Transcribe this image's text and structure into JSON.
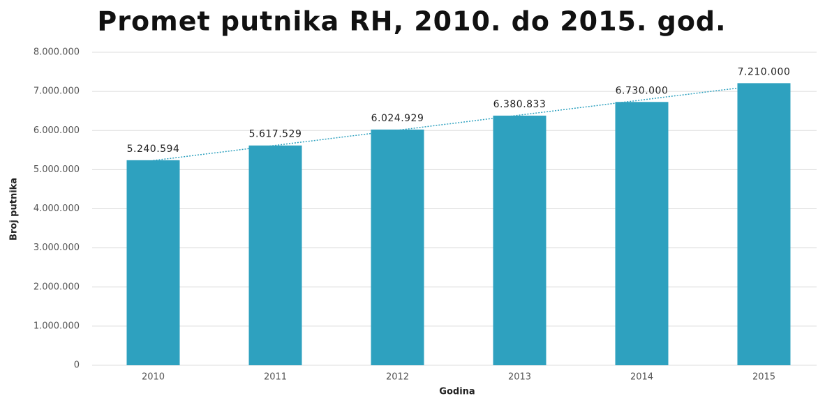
{
  "chart_data": {
    "type": "bar",
    "title": "Promet putnika RH, 2010. do 2015. god.",
    "x_label": "Godina",
    "y_label": "Broj putnika",
    "categories": [
      "2010",
      "2011",
      "2012",
      "2013",
      "2014",
      "2015"
    ],
    "values": [
      5240594,
      5617529,
      6024929,
      6380833,
      6730000,
      7210000
    ],
    "value_labels": [
      "5.240.594",
      "5.617.529",
      "6.024.929",
      "6.380.833",
      "6.730.000",
      "7.210.000"
    ],
    "color": "#2ea1bf",
    "trendline": true,
    "trendline_color": "#2ea1bf",
    "ylim": [
      0,
      8000000
    ],
    "yticks": [
      0,
      {
        "value": 1000000,
        "label": "1.000.000"
      },
      {
        "value": 2000000,
        "label": "2.000.000"
      },
      {
        "value": 3000000,
        "label": "3.000.000"
      },
      {
        "value": 4000000,
        "label": "4.000.000"
      },
      {
        "value": 5000000,
        "label": "5.000.000"
      },
      {
        "value": 6000000,
        "label": "6.000.000"
      },
      {
        "value": 7000000,
        "label": "7.000.000"
      },
      {
        "value": 8000000,
        "label": "8.000.000"
      }
    ],
    "grid": true
  }
}
